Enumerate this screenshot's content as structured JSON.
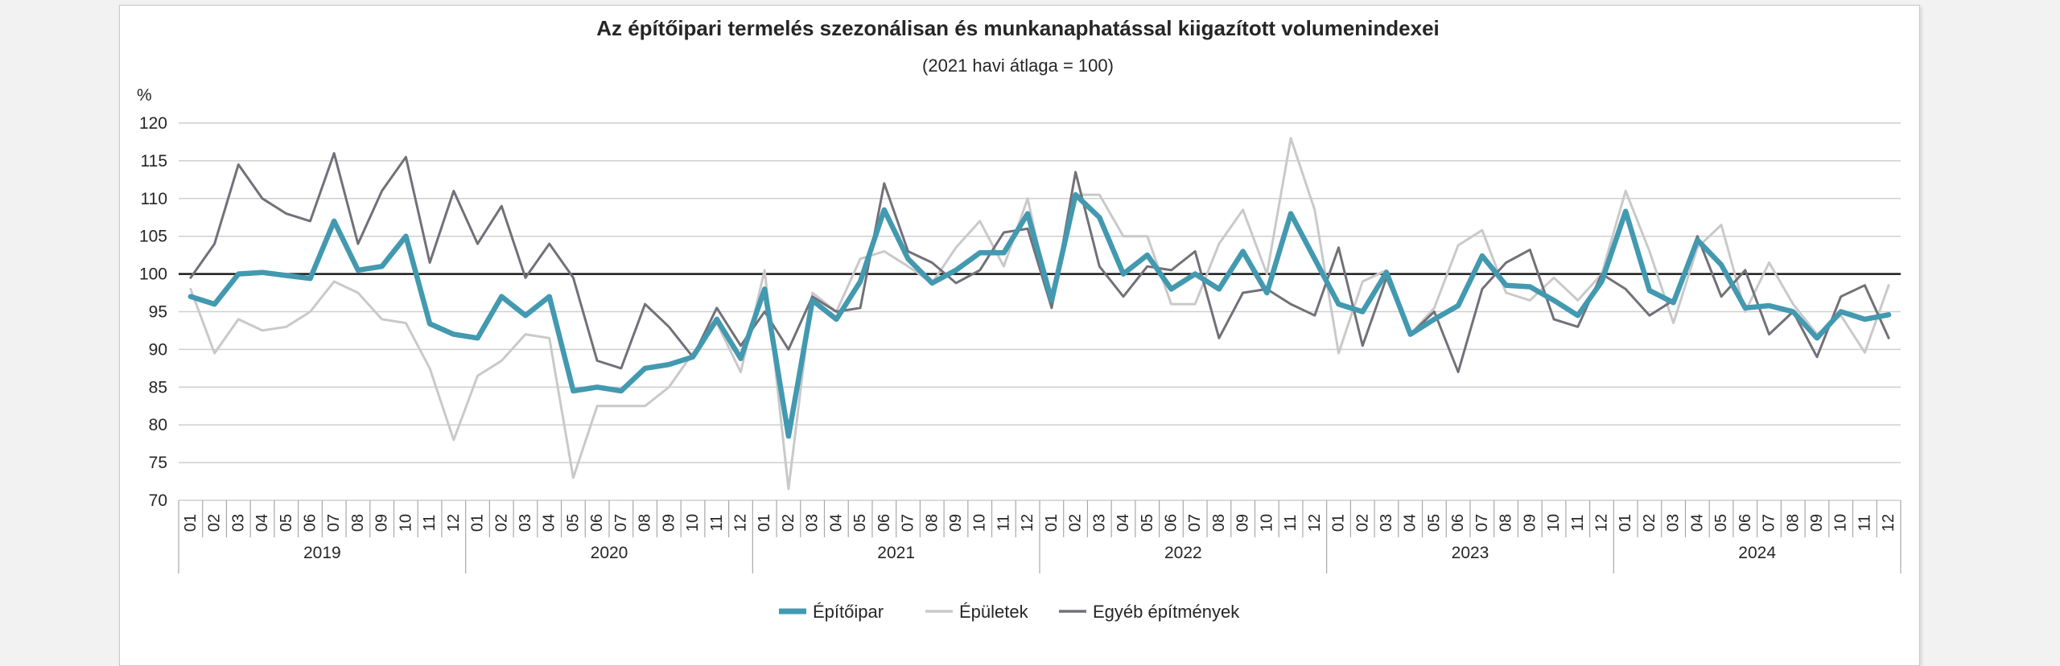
{
  "chart_data": {
    "type": "line",
    "title": "Az építőipari termelés szezonálisan és munkanaphatással kiigazított volumenindexei",
    "subtitle": "(2021 havi átlaga = 100)",
    "ylabel": "%",
    "ylim": [
      70,
      120
    ],
    "yticks": [
      70,
      75,
      80,
      85,
      90,
      95,
      100,
      105,
      110,
      115,
      120
    ],
    "reference_line": 100,
    "grid": true,
    "legend_position": "bottom",
    "months": [
      "01",
      "02",
      "03",
      "04",
      "05",
      "06",
      "07",
      "08",
      "09",
      "10",
      "11",
      "12"
    ],
    "years": [
      "2019",
      "2020",
      "2021",
      "2022",
      "2023",
      "2024"
    ],
    "series": [
      {
        "name": "Építőipar",
        "color": "#4299b0",
        "values": [
          97,
          96,
          100,
          100.2,
          99.8,
          99.4,
          107,
          100.5,
          101,
          105,
          93.4,
          92,
          91.5,
          97,
          94.5,
          97,
          84.5,
          85,
          84.5,
          87.5,
          88,
          89,
          94,
          88.8,
          98,
          78.5,
          96.5,
          94,
          99,
          108.5,
          102,
          98.8,
          100.5,
          102.8,
          102.8,
          108,
          96.5,
          110.5,
          107.5,
          100,
          102.5,
          98,
          100,
          98,
          103,
          97.5,
          108,
          102,
          96,
          95,
          100.2,
          92,
          94,
          95.8,
          102.4,
          98.5,
          98.3,
          96.5,
          94.5,
          99,
          108.3,
          97.8,
          96.2,
          104.5,
          101.2,
          95.5,
          95.8,
          95,
          91.5,
          95,
          94,
          94.6
        ]
      },
      {
        "name": "Épületek",
        "color": "#c9c9c9",
        "values": [
          98,
          89.5,
          94,
          92.5,
          93,
          95,
          99,
          97.5,
          94,
          93.5,
          87.5,
          78,
          86.5,
          88.5,
          92,
          91.5,
          73,
          82.5,
          82.5,
          82.5,
          85,
          89.5,
          93.5,
          87,
          100.5,
          71.5,
          97.5,
          95,
          102,
          103,
          101,
          98.8,
          103.5,
          107,
          101,
          110,
          95.5,
          110.5,
          110.5,
          105,
          105,
          96,
          96,
          104,
          108.5,
          100,
          118,
          108.5,
          89.5,
          99,
          100.5,
          92,
          95.5,
          103.8,
          105.8,
          97.5,
          96.5,
          99.5,
          96.5,
          100,
          111,
          103,
          93.5,
          103.5,
          106.5,
          95,
          101.5,
          96,
          92,
          94.5,
          89.6,
          98.5
        ]
      },
      {
        "name": "Egyéb építmények",
        "color": "#727078",
        "values": [
          99.5,
          104,
          114.5,
          110,
          108,
          107,
          116,
          104,
          111,
          115.5,
          101.5,
          111,
          104,
          109,
          99.5,
          104,
          99.5,
          88.5,
          87.5,
          96,
          93,
          89,
          95.5,
          90.5,
          95,
          90,
          97,
          95,
          95.5,
          112,
          103,
          101.5,
          98.8,
          100.5,
          105.5,
          106,
          95.5,
          113.5,
          101,
          97,
          101,
          100.5,
          103,
          91.5,
          97.5,
          98,
          96,
          94.5,
          103.5,
          90.5,
          99.5,
          92,
          95,
          87,
          98,
          101.5,
          103.2,
          94,
          93,
          100,
          98,
          94.5,
          96.5,
          105,
          97,
          100.5,
          92,
          95,
          89,
          97,
          98.5,
          91.5
        ]
      }
    ]
  }
}
